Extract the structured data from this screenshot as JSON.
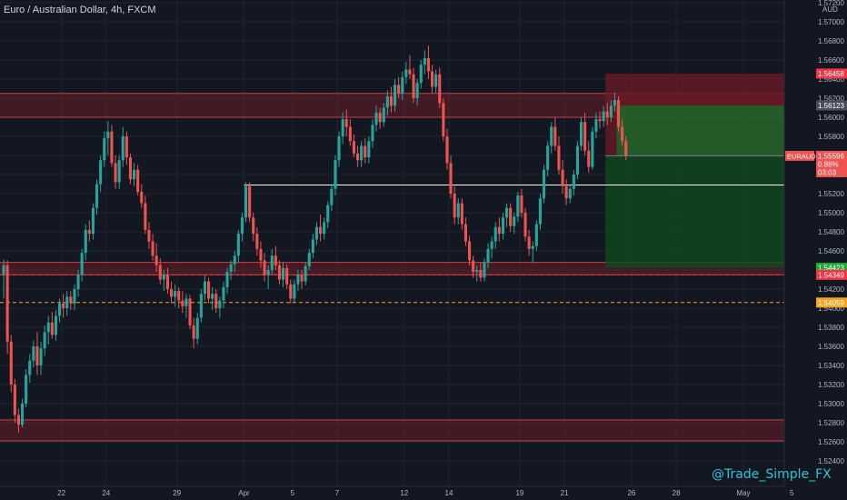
{
  "title": "Euro / Australian Dollar, 4h, FXCM",
  "watermark": "@Trade_Simple_FX",
  "colors": {
    "background": "#131722",
    "grid": "#1f2430",
    "up": "#26a69a",
    "down": "#ef5350",
    "axis_text": "#b2b5be",
    "zone_fill": "#7a1e28",
    "zone_line": "#c84048",
    "sl_zone": "#6e1a24",
    "tp_zone": "#0f4a1d",
    "tp_zone_bright": "#166b28",
    "dashed_red": "#f23645",
    "dashed_orange": "#f5a623"
  },
  "chart_data": {
    "type": "candlestick",
    "symbol": "EURAUD",
    "timeframe": "4h",
    "ylabel": "AUD",
    "ylim": [
      1.524,
      1.572
    ],
    "y_ticks": [
      "1.52400",
      "1.52600",
      "1.52800",
      "1.53000",
      "1.53200",
      "1.53400",
      "1.53600",
      "1.53800",
      "1.54000",
      "1.54200",
      "1.54400",
      "1.54600",
      "1.54800",
      "1.55000",
      "1.55200",
      "1.55400",
      "1.55600",
      "1.55800",
      "1.56000",
      "1.56200",
      "1.56400",
      "1.56600",
      "1.56800",
      "1.57000",
      "1.57200"
    ],
    "x_ticks": [
      {
        "label": "22",
        "bar": 16
      },
      {
        "label": "24",
        "bar": 28
      },
      {
        "label": "29",
        "bar": 47
      },
      {
        "label": "Apr",
        "bar": 65
      },
      {
        "label": "5",
        "bar": 78
      },
      {
        "label": "7",
        "bar": 90
      },
      {
        "label": "12",
        "bar": 108
      },
      {
        "label": "14",
        "bar": 120
      },
      {
        "label": "19",
        "bar": 139
      },
      {
        "label": "21",
        "bar": 151
      },
      {
        "label": "26",
        "bar": 169
      },
      {
        "label": "28",
        "bar": 181
      },
      {
        "label": "May",
        "bar": 199
      },
      {
        "label": "5",
        "bar": 212
      }
    ],
    "price_labels": [
      {
        "text": "1.56458",
        "value": 1.56458,
        "color": "#f23645"
      },
      {
        "text": "1.56123",
        "value": 1.56123,
        "color": "#4a4e59"
      },
      {
        "text": "1.54423",
        "value": 1.54423,
        "color": "#22ab36"
      },
      {
        "text": "1.54349",
        "value": 1.54349,
        "color": "#f23645"
      },
      {
        "text": "1.54059",
        "value": 1.54059,
        "color": "#f5a623"
      }
    ],
    "current_price": {
      "symbol": "EURAUD",
      "price": "1.55596",
      "change": "0.88%",
      "countdown": "03:03",
      "value": 1.55596
    },
    "zones": [
      {
        "from": 1.56,
        "to": 1.5625
      },
      {
        "from": 1.5435,
        "to": 1.5448
      },
      {
        "from": 1.5261,
        "to": 1.5283
      }
    ],
    "position": {
      "entry": 1.55596,
      "stop": 1.56458,
      "target": 1.54423,
      "start_bar": 162,
      "end_bar": 211
    },
    "lines": [
      {
        "type": "dashed",
        "value": 1.54349,
        "color": "red"
      },
      {
        "type": "dashed",
        "value": 1.54059,
        "color": "orange"
      },
      {
        "type": "solid",
        "value": 1.5529,
        "from_bar": 65,
        "to_bar": 211,
        "color": "white"
      }
    ],
    "candles": [
      [
        1.5435,
        1.5451,
        1.541,
        1.5445
      ],
      [
        1.5445,
        1.545,
        1.5352,
        1.5365
      ],
      [
        1.5365,
        1.5372,
        1.5312,
        1.532
      ],
      [
        1.532,
        1.5326,
        1.528,
        1.5288
      ],
      [
        1.5288,
        1.5295,
        1.527,
        1.5278
      ],
      [
        1.5278,
        1.5305,
        1.5275,
        1.53
      ],
      [
        1.53,
        1.5336,
        1.5296,
        1.533
      ],
      [
        1.533,
        1.5352,
        1.5322,
        1.5345
      ],
      [
        1.5345,
        1.5366,
        1.5338,
        1.536
      ],
      [
        1.536,
        1.5375,
        1.533,
        1.534
      ],
      [
        1.534,
        1.5365,
        1.533,
        1.5358
      ],
      [
        1.5358,
        1.5382,
        1.535,
        1.5375
      ],
      [
        1.5375,
        1.5392,
        1.5362,
        1.5385
      ],
      [
        1.5385,
        1.5396,
        1.5368,
        1.5372
      ],
      [
        1.5372,
        1.5398,
        1.5366,
        1.5392
      ],
      [
        1.5392,
        1.541,
        1.5385,
        1.5405
      ],
      [
        1.5405,
        1.5415,
        1.539,
        1.54
      ],
      [
        1.54,
        1.5418,
        1.5392,
        1.5412
      ],
      [
        1.5412,
        1.5418,
        1.5398,
        1.5405
      ],
      [
        1.5405,
        1.5425,
        1.5398,
        1.542
      ],
      [
        1.542,
        1.544,
        1.5412,
        1.5435
      ],
      [
        1.5435,
        1.5462,
        1.5428,
        1.5458
      ],
      [
        1.5458,
        1.5488,
        1.545,
        1.5482
      ],
      [
        1.5482,
        1.5492,
        1.547,
        1.5478
      ],
      [
        1.5478,
        1.551,
        1.5472,
        1.5505
      ],
      [
        1.5505,
        1.5535,
        1.5498,
        1.553
      ],
      [
        1.553,
        1.556,
        1.5522,
        1.5555
      ],
      [
        1.5555,
        1.5585,
        1.5548,
        1.5578
      ],
      [
        1.5578,
        1.5596,
        1.556,
        1.5585
      ],
      [
        1.5585,
        1.5592,
        1.5548,
        1.5552
      ],
      [
        1.5552,
        1.556,
        1.5525,
        1.5532
      ],
      [
        1.5532,
        1.556,
        1.5525,
        1.5555
      ],
      [
        1.5555,
        1.559,
        1.5548,
        1.558
      ],
      [
        1.558,
        1.5585,
        1.555,
        1.5558
      ],
      [
        1.5558,
        1.5562,
        1.553,
        1.5535
      ],
      [
        1.5535,
        1.5552,
        1.5528,
        1.5545
      ],
      [
        1.5545,
        1.555,
        1.5518,
        1.5522
      ],
      [
        1.5522,
        1.553,
        1.5505,
        1.551
      ],
      [
        1.551,
        1.5518,
        1.5478,
        1.5482
      ],
      [
        1.5482,
        1.549,
        1.5462,
        1.547
      ],
      [
        1.547,
        1.5478,
        1.545,
        1.5455
      ],
      [
        1.5455,
        1.5468,
        1.5438,
        1.5445
      ],
      [
        1.5445,
        1.5452,
        1.5425,
        1.543
      ],
      [
        1.543,
        1.544,
        1.5418,
        1.5435
      ],
      [
        1.5435,
        1.5442,
        1.5415,
        1.542
      ],
      [
        1.542,
        1.5428,
        1.5405,
        1.5412
      ],
      [
        1.5412,
        1.5425,
        1.5402,
        1.5418
      ],
      [
        1.5418,
        1.5422,
        1.54,
        1.5408
      ],
      [
        1.5408,
        1.5418,
        1.5395,
        1.5402
      ],
      [
        1.5402,
        1.5415,
        1.539,
        1.541
      ],
      [
        1.541,
        1.5414,
        1.5378,
        1.5382
      ],
      [
        1.5382,
        1.539,
        1.5358,
        1.5368
      ],
      [
        1.5368,
        1.5395,
        1.5362,
        1.539
      ],
      [
        1.539,
        1.542,
        1.5385,
        1.5415
      ],
      [
        1.5415,
        1.5435,
        1.5408,
        1.5428
      ],
      [
        1.5428,
        1.5432,
        1.5405,
        1.541
      ],
      [
        1.541,
        1.5422,
        1.5398,
        1.5415
      ],
      [
        1.5415,
        1.542,
        1.5395,
        1.54
      ],
      [
        1.54,
        1.5412,
        1.539,
        1.5408
      ],
      [
        1.5408,
        1.5428,
        1.54,
        1.5422
      ],
      [
        1.5422,
        1.5442,
        1.5415,
        1.5438
      ],
      [
        1.5438,
        1.545,
        1.543,
        1.5446
      ],
      [
        1.5446,
        1.546,
        1.5438,
        1.5455
      ],
      [
        1.5455,
        1.5482,
        1.5448,
        1.5478
      ],
      [
        1.5478,
        1.55,
        1.547,
        1.5495
      ],
      [
        1.5495,
        1.5532,
        1.549,
        1.5528
      ],
      [
        1.5528,
        1.5532,
        1.549,
        1.5495
      ],
      [
        1.5495,
        1.55,
        1.547,
        1.5478
      ],
      [
        1.5478,
        1.5485,
        1.5455,
        1.5462
      ],
      [
        1.5462,
        1.547,
        1.5442,
        1.545
      ],
      [
        1.545,
        1.5458,
        1.5428,
        1.5435
      ],
      [
        1.5435,
        1.5445,
        1.542,
        1.544
      ],
      [
        1.544,
        1.5462,
        1.5435,
        1.5455
      ],
      [
        1.5455,
        1.5465,
        1.544,
        1.5445
      ],
      [
        1.5445,
        1.545,
        1.5425,
        1.543
      ],
      [
        1.543,
        1.5448,
        1.5422,
        1.5442
      ],
      [
        1.5442,
        1.5446,
        1.542,
        1.5425
      ],
      [
        1.5425,
        1.543,
        1.5405,
        1.541
      ],
      [
        1.541,
        1.543,
        1.5406,
        1.5425
      ],
      [
        1.5425,
        1.544,
        1.5418,
        1.5435
      ],
      [
        1.5435,
        1.544,
        1.542,
        1.5428
      ],
      [
        1.5428,
        1.5448,
        1.5424,
        1.5444
      ],
      [
        1.5444,
        1.5462,
        1.544,
        1.5458
      ],
      [
        1.5458,
        1.5478,
        1.5452,
        1.5472
      ],
      [
        1.5472,
        1.549,
        1.5466,
        1.5485
      ],
      [
        1.5485,
        1.5498,
        1.547,
        1.5478
      ],
      [
        1.5478,
        1.5495,
        1.5472,
        1.549
      ],
      [
        1.549,
        1.5512,
        1.5484,
        1.5508
      ],
      [
        1.5508,
        1.553,
        1.5502,
        1.5525
      ],
      [
        1.5525,
        1.556,
        1.5518,
        1.5555
      ],
      [
        1.5555,
        1.5585,
        1.5548,
        1.558
      ],
      [
        1.558,
        1.5605,
        1.5572,
        1.5598
      ],
      [
        1.5598,
        1.5608,
        1.558,
        1.559
      ],
      [
        1.559,
        1.5598,
        1.557,
        1.5575
      ],
      [
        1.5575,
        1.5582,
        1.5558,
        1.5562
      ],
      [
        1.5562,
        1.557,
        1.5548,
        1.5555
      ],
      [
        1.5555,
        1.5575,
        1.5548,
        1.557
      ],
      [
        1.557,
        1.5578,
        1.5552,
        1.5558
      ],
      [
        1.5558,
        1.558,
        1.5552,
        1.5575
      ],
      [
        1.5575,
        1.5598,
        1.5568,
        1.5592
      ],
      [
        1.5592,
        1.5612,
        1.5585,
        1.5605
      ],
      [
        1.5605,
        1.561,
        1.5588,
        1.5595
      ],
      [
        1.5595,
        1.5615,
        1.559,
        1.561
      ],
      [
        1.561,
        1.5628,
        1.5602,
        1.5622
      ],
      [
        1.5622,
        1.5632,
        1.5605,
        1.5612
      ],
      [
        1.5612,
        1.564,
        1.5606,
        1.5634
      ],
      [
        1.5634,
        1.5642,
        1.562,
        1.5625
      ],
      [
        1.5625,
        1.5648,
        1.5618,
        1.5642
      ],
      [
        1.5642,
        1.5658,
        1.5635,
        1.565
      ],
      [
        1.565,
        1.5665,
        1.564,
        1.5645
      ],
      [
        1.5645,
        1.5652,
        1.5615,
        1.562
      ],
      [
        1.562,
        1.564,
        1.5612,
        1.5636
      ],
      [
        1.5636,
        1.566,
        1.563,
        1.5655
      ],
      [
        1.5655,
        1.567,
        1.5645,
        1.5662
      ],
      [
        1.5662,
        1.5675,
        1.564,
        1.5648
      ],
      [
        1.5648,
        1.5655,
        1.5625,
        1.5632
      ],
      [
        1.5632,
        1.565,
        1.5625,
        1.5645
      ],
      [
        1.5645,
        1.5652,
        1.561,
        1.5615
      ],
      [
        1.5615,
        1.562,
        1.5575,
        1.558
      ],
      [
        1.558,
        1.5588,
        1.5545,
        1.5552
      ],
      [
        1.5552,
        1.556,
        1.5515,
        1.552
      ],
      [
        1.552,
        1.5528,
        1.5488,
        1.5495
      ],
      [
        1.5495,
        1.5515,
        1.5488,
        1.551
      ],
      [
        1.551,
        1.5515,
        1.5482,
        1.5488
      ],
      [
        1.5488,
        1.5495,
        1.5465,
        1.547
      ],
      [
        1.547,
        1.5476,
        1.5445,
        1.545
      ],
      [
        1.545,
        1.5455,
        1.5432,
        1.5438
      ],
      [
        1.5438,
        1.5445,
        1.5428,
        1.544
      ],
      [
        1.544,
        1.5448,
        1.5428,
        1.5432
      ],
      [
        1.5432,
        1.5452,
        1.5428,
        1.5448
      ],
      [
        1.5448,
        1.5468,
        1.5442,
        1.5462
      ],
      [
        1.5462,
        1.5475,
        1.5452,
        1.547
      ],
      [
        1.547,
        1.549,
        1.5462,
        1.5485
      ],
      [
        1.5485,
        1.5495,
        1.547,
        1.5478
      ],
      [
        1.5478,
        1.55,
        1.5472,
        1.5495
      ],
      [
        1.5495,
        1.551,
        1.5485,
        1.5505
      ],
      [
        1.5505,
        1.551,
        1.548,
        1.5486
      ],
      [
        1.5486,
        1.55,
        1.5478,
        1.5496
      ],
      [
        1.5496,
        1.5522,
        1.549,
        1.5518
      ],
      [
        1.5518,
        1.5525,
        1.5495,
        1.55
      ],
      [
        1.55,
        1.5505,
        1.547,
        1.5475
      ],
      [
        1.5475,
        1.5482,
        1.5455,
        1.5462
      ],
      [
        1.5462,
        1.547,
        1.5448,
        1.5465
      ],
      [
        1.5465,
        1.5492,
        1.546,
        1.5488
      ],
      [
        1.5488,
        1.552,
        1.5482,
        1.5515
      ],
      [
        1.5515,
        1.555,
        1.551,
        1.5545
      ],
      [
        1.5545,
        1.5575,
        1.5538,
        1.557
      ],
      [
        1.557,
        1.5595,
        1.5562,
        1.559
      ],
      [
        1.559,
        1.56,
        1.5565,
        1.557
      ],
      [
        1.557,
        1.558,
        1.554,
        1.5545
      ],
      [
        1.5545,
        1.5555,
        1.552,
        1.5528
      ],
      [
        1.5528,
        1.5535,
        1.5508,
        1.5515
      ],
      [
        1.5515,
        1.553,
        1.551,
        1.5525
      ],
      [
        1.5525,
        1.5545,
        1.5518,
        1.554
      ],
      [
        1.554,
        1.5575,
        1.5535,
        1.557
      ],
      [
        1.557,
        1.56,
        1.5565,
        1.5595
      ],
      [
        1.5595,
        1.5605,
        1.556,
        1.5565
      ],
      [
        1.5565,
        1.5575,
        1.5542,
        1.5548
      ],
      [
        1.5548,
        1.559,
        1.5545,
        1.5585
      ],
      [
        1.5585,
        1.5605,
        1.5578,
        1.5598
      ],
      [
        1.5598,
        1.5606,
        1.5588,
        1.5596
      ],
      [
        1.5596,
        1.5612,
        1.559,
        1.5606
      ],
      [
        1.5606,
        1.5615,
        1.5592,
        1.56
      ],
      [
        1.56,
        1.5618,
        1.5595,
        1.5612
      ],
      [
        1.5612,
        1.5626,
        1.5606,
        1.5618
      ],
      [
        1.5618,
        1.5622,
        1.5585,
        1.559
      ],
      [
        1.559,
        1.5598,
        1.557,
        1.5575
      ],
      [
        1.5575,
        1.558,
        1.5555,
        1.556
      ]
    ]
  }
}
